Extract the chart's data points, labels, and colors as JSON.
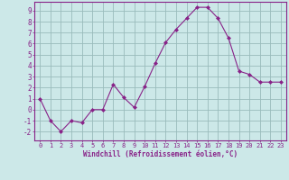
{
  "x": [
    0,
    1,
    2,
    3,
    4,
    5,
    6,
    7,
    8,
    9,
    10,
    11,
    12,
    13,
    14,
    15,
    16,
    17,
    18,
    19,
    20,
    21,
    22,
    23
  ],
  "y": [
    1,
    -1,
    -2,
    -1,
    -1.2,
    0,
    0,
    2.3,
    1.1,
    0.2,
    2.1,
    4.2,
    6.1,
    7.3,
    8.3,
    9.3,
    9.3,
    8.3,
    6.5,
    3.5,
    3.2,
    2.5,
    2.5,
    2.5
  ],
  "line_color": "#882288",
  "marker_color": "#882288",
  "bg_color": "#cce8e8",
  "grid_color": "#99bbbb",
  "axis_color": "#882288",
  "xlabel": "Windchill (Refroidissement éolien,°C)",
  "xlim": [
    -0.5,
    23.5
  ],
  "ylim": [
    -2.8,
    9.8
  ],
  "yticks": [
    -2,
    -1,
    0,
    1,
    2,
    3,
    4,
    5,
    6,
    7,
    8,
    9
  ],
  "xticks": [
    0,
    1,
    2,
    3,
    4,
    5,
    6,
    7,
    8,
    9,
    10,
    11,
    12,
    13,
    14,
    15,
    16,
    17,
    18,
    19,
    20,
    21,
    22,
    23
  ],
  "tick_fontsize": 5.0,
  "xlabel_fontsize": 5.5
}
